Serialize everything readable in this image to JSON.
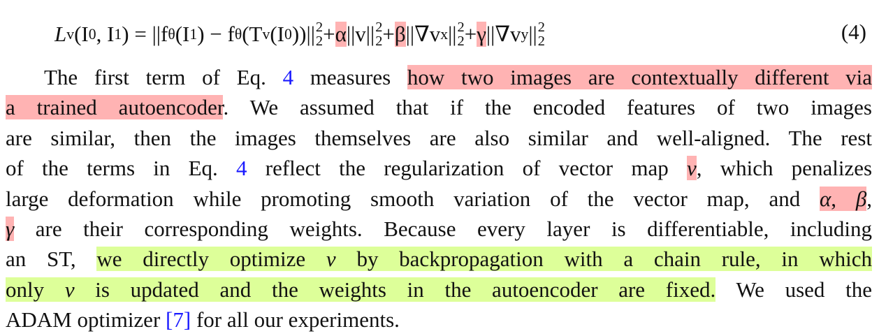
{
  "equation": {
    "lhs": "L",
    "lhs_sub": "v",
    "lhs_args": "(I",
    "arg0_sub": "0",
    "args_mid": ", I",
    "arg1_sub": "1",
    "args_close": ") = ||f",
    "theta": "θ",
    "t1_open": "(I",
    "t1_sub": "1",
    "t1_close": ") − f",
    "t2_open": "(T",
    "t2_v": "v",
    "t2_inner": "(I",
    "t2_sub": "0",
    "t2_close": "))||",
    "sq": "2",
    "norm_sub": "2",
    "plus": " + ",
    "alpha": "α",
    "term_v": "||v||",
    "beta": "β",
    "term_vx_open": "||∇v",
    "x_sub": "x",
    "term_close": "||",
    "gamma": "γ",
    "term_vy_open": "||∇v",
    "y_sub": "y",
    "number": "(4)"
  },
  "paragraph": {
    "l1_a": "The first term of Eq.",
    "l1_ref": "4",
    "l1_b": "measures",
    "l1_hl": "how two images are contextually different via",
    "l2_hl": "a trained autoencoder",
    "l2_b": ". We assumed that if the encoded features of two images",
    "l3": "are similar, then the images themselves are also similar and well-aligned. The rest",
    "l4_a": "of the terms in Eq.",
    "l4_ref": "4",
    "l4_b": "reflect the regularization of vector map",
    "l4_v": "v",
    "l4_c": ", which penalizes",
    "l5_a": "large deformation while promoting smooth variation of the vector map, and",
    "l5_alpha": "α",
    "l5_comma": ",",
    "l5_beta": "β",
    "l5_end": ",",
    "l6_gamma": "γ",
    "l6_b": "are their corresponding weights. Because every layer is differentiable, including",
    "l7_a": "an ST,",
    "l7_hl_a": "we directly optimize",
    "l7_v": "v",
    "l7_hl_b": "by backpropagation with a chain rule, in which",
    "l8_hl_a": "only",
    "l8_v": "v",
    "l8_hl_b": "is updated and the weights in the autoencoder are fixed.",
    "l8_b": "We used the",
    "l9_a": "ADAM optimizer",
    "l9_ref": "[7]",
    "l9_b": "for all our experiments."
  }
}
